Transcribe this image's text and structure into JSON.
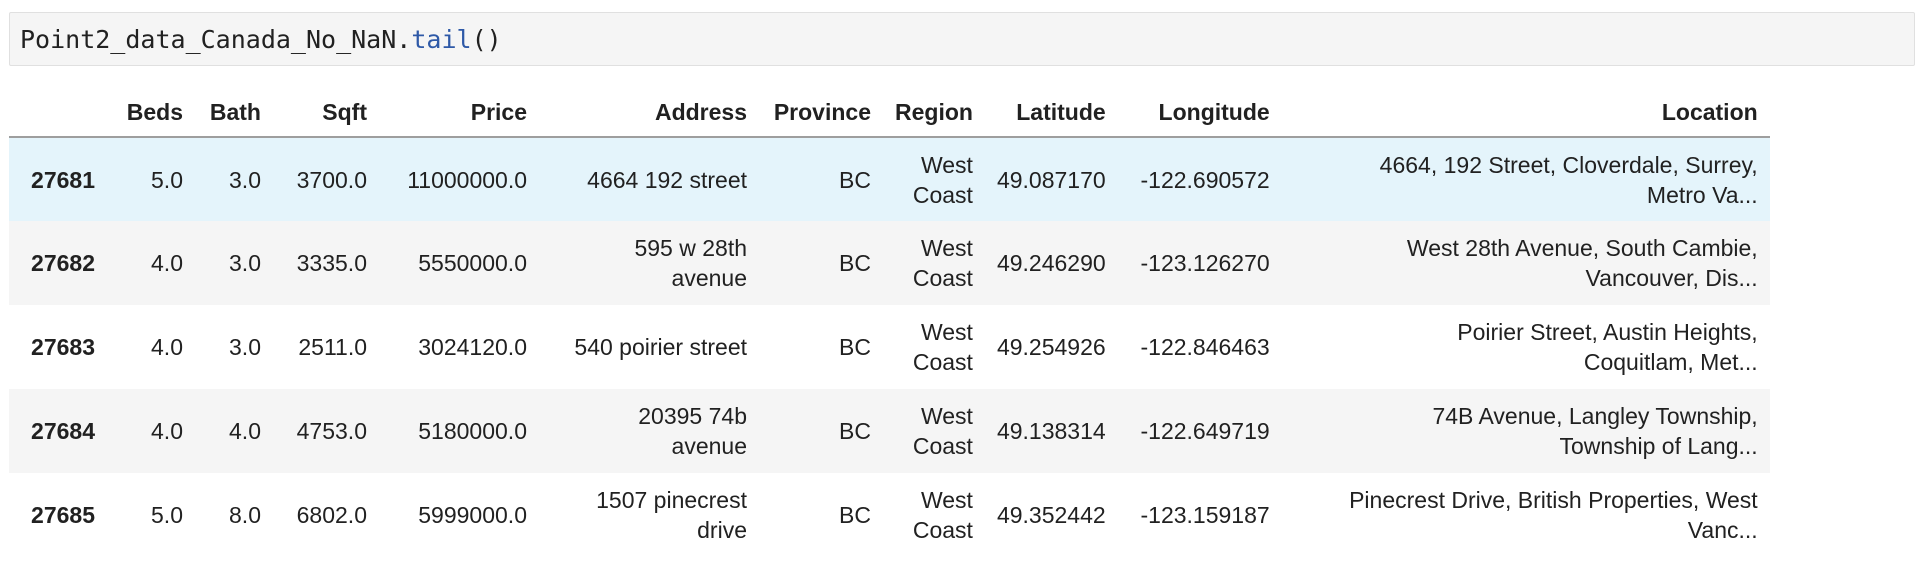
{
  "code_cell": {
    "variable": "Point2_data_Canada_No_NaN.",
    "method": "tail",
    "call": "()"
  },
  "table": {
    "columns": [
      "Beds",
      "Bath",
      "Sqft",
      "Price",
      "Address",
      "Province",
      "Region",
      "Latitude",
      "Longitude",
      "Location"
    ],
    "rows": [
      {
        "index": "27681",
        "beds": "5.0",
        "bath": "3.0",
        "sqft": "3700.0",
        "price": "11000000.0",
        "address_1": "4664 192 street",
        "address_2": "",
        "province": "BC",
        "region_1": "West",
        "region_2": "Coast",
        "latitude": "49.087170",
        "longitude": "-122.690572",
        "location_1": "4664, 192 Street, Cloverdale, Surrey,",
        "location_2": "Metro Va..."
      },
      {
        "index": "27682",
        "beds": "4.0",
        "bath": "3.0",
        "sqft": "3335.0",
        "price": "5550000.0",
        "address_1": "595 w 28th",
        "address_2": "avenue",
        "province": "BC",
        "region_1": "West",
        "region_2": "Coast",
        "latitude": "49.246290",
        "longitude": "-123.126270",
        "location_1": "West 28th Avenue, South Cambie,",
        "location_2": "Vancouver, Dis..."
      },
      {
        "index": "27683",
        "beds": "4.0",
        "bath": "3.0",
        "sqft": "2511.0",
        "price": "3024120.0",
        "address_1": "540 poirier street",
        "address_2": "",
        "province": "BC",
        "region_1": "West",
        "region_2": "Coast",
        "latitude": "49.254926",
        "longitude": "-122.846463",
        "location_1": "Poirier Street, Austin Heights,",
        "location_2": "Coquitlam, Met..."
      },
      {
        "index": "27684",
        "beds": "4.0",
        "bath": "4.0",
        "sqft": "4753.0",
        "price": "5180000.0",
        "address_1": "20395 74b",
        "address_2": "avenue",
        "province": "BC",
        "region_1": "West",
        "region_2": "Coast",
        "latitude": "49.138314",
        "longitude": "-122.649719",
        "location_1": "74B Avenue, Langley Township,",
        "location_2": "Township of Lang..."
      },
      {
        "index": "27685",
        "beds": "5.0",
        "bath": "8.0",
        "sqft": "6802.0",
        "price": "5999000.0",
        "address_1": "1507 pinecrest",
        "address_2": "drive",
        "province": "BC",
        "region_1": "West",
        "region_2": "Coast",
        "latitude": "49.352442",
        "longitude": "-123.159187",
        "location_1": "Pinecrest Drive, British Properties, West",
        "location_2": "Vanc..."
      }
    ]
  },
  "colors": {
    "code_background": "#f5f5f5",
    "method_color": "#2e59a7",
    "stripe_row": "#f5f5f5",
    "hover_row": "#e4f4fb"
  }
}
